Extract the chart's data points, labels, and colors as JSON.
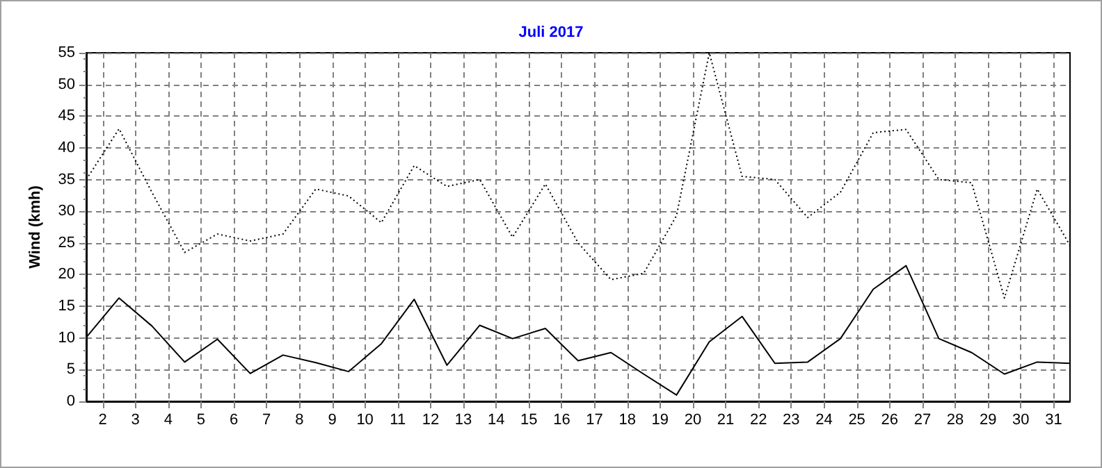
{
  "chart_data": {
    "type": "line",
    "title": "Juli 2017",
    "ylabel": "Wind (kmh)",
    "x": [
      1.5,
      2.5,
      3.5,
      4.5,
      5.5,
      6.5,
      7.5,
      8.5,
      9.5,
      10.5,
      11.5,
      12.5,
      13.5,
      14.5,
      15.5,
      16.5,
      17.5,
      18.5,
      19.5,
      20.5,
      21.5,
      22.5,
      23.5,
      24.5,
      25.5,
      26.5,
      27.5,
      28.5,
      29.5,
      30.5,
      31.5
    ],
    "series": [
      {
        "color": "#000000",
        "line_style": "dotted",
        "values": [
          35,
          43,
          33,
          23.5,
          26.4,
          25.3,
          26.4,
          33.5,
          32.4,
          28.2,
          37.2,
          33.9,
          35,
          25.9,
          34.3,
          25,
          19.2,
          20.2,
          29.3,
          55,
          35.5,
          35,
          29,
          33,
          42.4,
          42.9,
          35,
          34.5,
          16.3,
          33.5,
          24.6
        ]
      },
      {
        "color": "#000000",
        "line_style": "solid",
        "values": [
          10.1,
          16.3,
          11.9,
          6.2,
          9.8,
          4.4,
          7.3,
          6.1,
          4.7,
          9.1,
          16.1,
          5.7,
          12,
          9.9,
          11.5,
          6.4,
          7.7,
          4.3,
          1,
          9.4,
          13.4,
          6,
          6.2,
          9.9,
          17.7,
          21.4,
          9.9,
          7.7,
          4.3,
          6.2,
          6
        ]
      }
    ],
    "xlim": [
      1.5,
      31.5
    ],
    "xticks": [
      2,
      3,
      4,
      5,
      6,
      7,
      8,
      9,
      10,
      11,
      12,
      13,
      14,
      15,
      16,
      17,
      18,
      19,
      20,
      21,
      22,
      23,
      24,
      25,
      26,
      27,
      28,
      29,
      30,
      31
    ],
    "ylim": [
      0,
      55
    ],
    "yticks": [
      0,
      5,
      10,
      15,
      20,
      25,
      30,
      35,
      40,
      45,
      50,
      55
    ],
    "grid": true,
    "marker": "none"
  }
}
